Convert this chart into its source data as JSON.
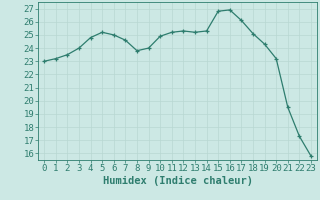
{
  "x": [
    0,
    1,
    2,
    3,
    4,
    5,
    6,
    7,
    8,
    9,
    10,
    11,
    12,
    13,
    14,
    15,
    16,
    17,
    18,
    19,
    20,
    21,
    22,
    23
  ],
  "y": [
    23.0,
    23.2,
    23.5,
    24.0,
    24.8,
    25.2,
    25.0,
    24.6,
    23.8,
    24.0,
    24.9,
    25.2,
    25.3,
    25.2,
    25.3,
    26.8,
    26.9,
    26.1,
    25.1,
    24.3,
    23.2,
    19.5,
    17.3,
    15.8
  ],
  "xlabel": "Humidex (Indice chaleur)",
  "ylim": [
    15.5,
    27.5
  ],
  "xlim": [
    -0.5,
    23.5
  ],
  "yticks": [
    16,
    17,
    18,
    19,
    20,
    21,
    22,
    23,
    24,
    25,
    26,
    27
  ],
  "xticks": [
    0,
    1,
    2,
    3,
    4,
    5,
    6,
    7,
    8,
    9,
    10,
    11,
    12,
    13,
    14,
    15,
    16,
    17,
    18,
    19,
    20,
    21,
    22,
    23
  ],
  "line_color": "#2e7d6e",
  "marker": "+",
  "bg_color": "#cce8e4",
  "grid_color": "#b8d8d2",
  "tick_label_fontsize": 6.5,
  "xlabel_fontsize": 7.5
}
